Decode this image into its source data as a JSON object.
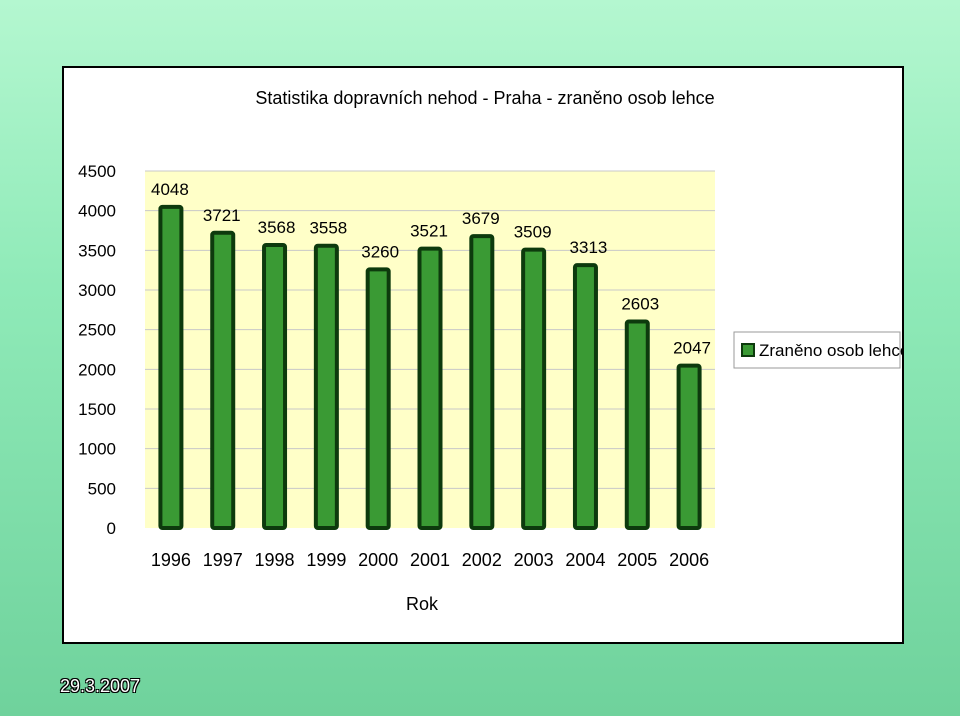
{
  "slide": {
    "date": "29.3.2007"
  },
  "chart_data": {
    "type": "bar",
    "title": "Statistika dopravních nehod - Praha - zraněno osob lehce",
    "xlabel": "Rok",
    "ylabel": "",
    "categories": [
      "1996",
      "1997",
      "1998",
      "1999",
      "2000",
      "2001",
      "2002",
      "2003",
      "2004",
      "2005",
      "2006"
    ],
    "series": [
      {
        "name": "Zraněno osob lehce",
        "values": [
          4048,
          3721,
          3568,
          3558,
          3260,
          3521,
          3679,
          3509,
          3313,
          2603,
          2047
        ]
      }
    ],
    "ylim": [
      0,
      4500
    ],
    "yticks": [
      "0",
      "500",
      "1000",
      "1500",
      "2000",
      "2500",
      "3000",
      "3500",
      "4000",
      "4500"
    ],
    "data_labels": [
      "4048",
      "3721",
      "3568",
      "3558",
      "3260",
      "3521",
      "3679",
      "3509",
      "3313",
      "2603",
      "2047"
    ],
    "grid": true,
    "legend": "right",
    "colors": {
      "bar_fill": "#3a9a34",
      "bar_stroke": "#0d3a0d",
      "plot_bg": "#ffffc8",
      "grid": "#c8c8c8"
    }
  }
}
